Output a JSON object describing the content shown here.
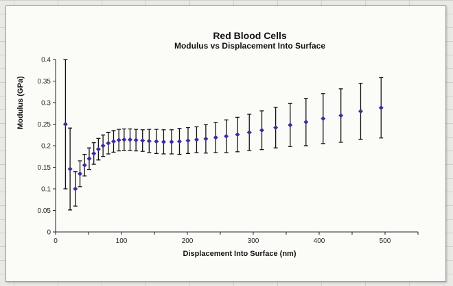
{
  "chart_data": {
    "type": "scatter",
    "title": "Red Blood Cells",
    "subtitle": "Modulus vs Displacement Into Surface",
    "xlabel": "Displacement Into Surface (nm)",
    "ylabel": "Modulus (GPa)",
    "xlim": [
      0,
      550
    ],
    "ylim": [
      0,
      0.4
    ],
    "x_ticks": [
      0,
      100,
      200,
      300,
      400,
      500
    ],
    "y_ticks": [
      0,
      0.05,
      0.1,
      0.15,
      0.2,
      0.25,
      0.3,
      0.35,
      0.4
    ],
    "grid": false,
    "marker_color": "#3a2fa0",
    "errorbar_color": "#111111",
    "series": [
      {
        "points": [
          {
            "x": 15,
            "y": 0.25,
            "err": 0.15
          },
          {
            "x": 22,
            "y": 0.146,
            "err": 0.095
          },
          {
            "x": 30,
            "y": 0.1,
            "err": 0.04
          },
          {
            "x": 37,
            "y": 0.135,
            "err": 0.03
          },
          {
            "x": 44,
            "y": 0.155,
            "err": 0.025
          },
          {
            "x": 51,
            "y": 0.17,
            "err": 0.025
          },
          {
            "x": 58,
            "y": 0.182,
            "err": 0.025
          },
          {
            "x": 65,
            "y": 0.192,
            "err": 0.025
          },
          {
            "x": 72,
            "y": 0.2,
            "err": 0.025
          },
          {
            "x": 80,
            "y": 0.206,
            "err": 0.025
          },
          {
            "x": 88,
            "y": 0.21,
            "err": 0.025
          },
          {
            "x": 96,
            "y": 0.213,
            "err": 0.025
          },
          {
            "x": 104,
            "y": 0.214,
            "err": 0.025
          },
          {
            "x": 113,
            "y": 0.214,
            "err": 0.025
          },
          {
            "x": 122,
            "y": 0.213,
            "err": 0.025
          },
          {
            "x": 132,
            "y": 0.212,
            "err": 0.025
          },
          {
            "x": 142,
            "y": 0.211,
            "err": 0.027
          },
          {
            "x": 153,
            "y": 0.21,
            "err": 0.028
          },
          {
            "x": 164,
            "y": 0.209,
            "err": 0.028
          },
          {
            "x": 176,
            "y": 0.209,
            "err": 0.028
          },
          {
            "x": 188,
            "y": 0.21,
            "err": 0.03
          },
          {
            "x": 201,
            "y": 0.212,
            "err": 0.03
          },
          {
            "x": 214,
            "y": 0.214,
            "err": 0.03
          },
          {
            "x": 228,
            "y": 0.216,
            "err": 0.033
          },
          {
            "x": 243,
            "y": 0.219,
            "err": 0.035
          },
          {
            "x": 259,
            "y": 0.222,
            "err": 0.038
          },
          {
            "x": 276,
            "y": 0.226,
            "err": 0.04
          },
          {
            "x": 294,
            "y": 0.231,
            "err": 0.042
          },
          {
            "x": 313,
            "y": 0.236,
            "err": 0.045
          },
          {
            "x": 334,
            "y": 0.242,
            "err": 0.047
          },
          {
            "x": 356,
            "y": 0.248,
            "err": 0.05
          },
          {
            "x": 380,
            "y": 0.255,
            "err": 0.055
          },
          {
            "x": 406,
            "y": 0.263,
            "err": 0.058
          },
          {
            "x": 433,
            "y": 0.27,
            "err": 0.062
          },
          {
            "x": 463,
            "y": 0.28,
            "err": 0.065
          },
          {
            "x": 494,
            "y": 0.288,
            "err": 0.07
          }
        ]
      }
    ]
  }
}
